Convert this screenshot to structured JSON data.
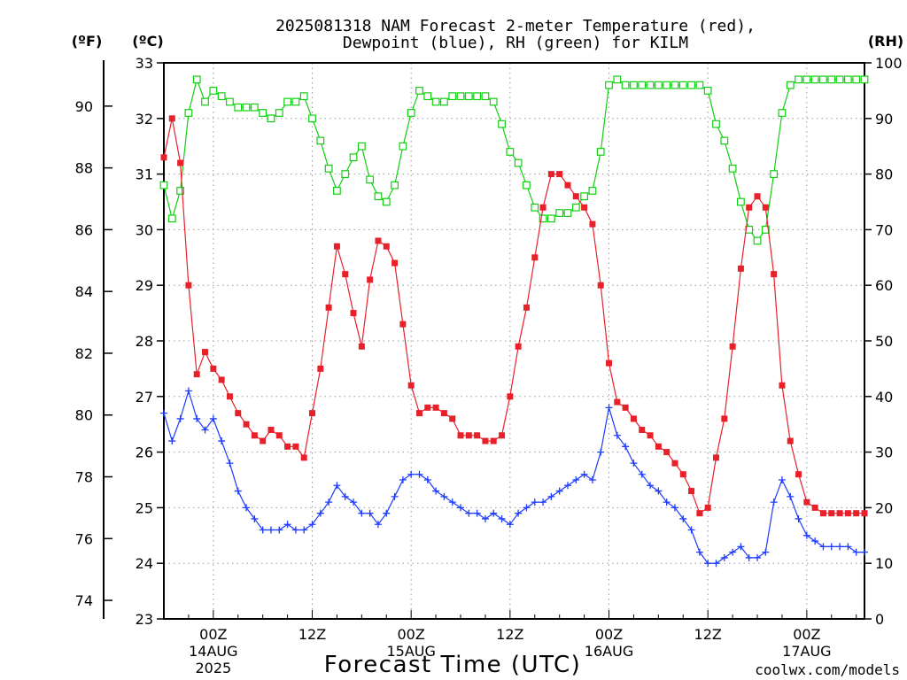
{
  "title_line1": "2025081318 NAM Forecast 2-meter Temperature (red),",
  "title_line2": "Dewpoint (blue), RH (green) for KILM",
  "unit_f": "(ºF)",
  "unit_c": "(ºC)",
  "unit_rh": "(RH)",
  "xlabel": "Forecast Time (UTC)",
  "credit": "coolwx.com/models",
  "colors": {
    "temperature": "#e8202a",
    "dewpoint": "#1e3cff",
    "rh": "#10d010",
    "grid": "#9a9a9a",
    "credit": "#e8202a"
  },
  "chart_data": {
    "type": "line",
    "x_units": "forecast hours from 2025081318 UTC",
    "x": [
      0,
      1,
      2,
      3,
      4,
      5,
      6,
      7,
      8,
      9,
      10,
      11,
      12,
      13,
      14,
      15,
      16,
      17,
      18,
      19,
      20,
      21,
      22,
      23,
      24,
      25,
      26,
      27,
      28,
      29,
      30,
      31,
      32,
      33,
      34,
      35,
      36,
      37,
      38,
      39,
      40,
      41,
      42,
      43,
      44,
      45,
      46,
      47,
      48,
      49,
      50,
      51,
      52,
      53,
      54,
      55,
      56,
      57,
      58,
      59,
      60,
      61,
      62,
      63,
      64,
      65,
      66,
      67,
      68,
      69,
      70,
      71,
      72,
      73,
      74,
      75,
      76,
      77,
      78,
      79,
      80,
      81,
      82,
      83,
      84,
      85
    ],
    "xlim": [
      0,
      85
    ],
    "x_ticks": [
      {
        "x": 6,
        "label": "00Z",
        "sub1": "14AUG",
        "sub2": "2025"
      },
      {
        "x": 18,
        "label": "12Z"
      },
      {
        "x": 30,
        "label": "00Z",
        "sub1": "15AUG"
      },
      {
        "x": 42,
        "label": "12Z"
      },
      {
        "x": 54,
        "label": "00Z",
        "sub1": "16AUG"
      },
      {
        "x": 66,
        "label": "12Z"
      },
      {
        "x": 78,
        "label": "00Z",
        "sub1": "17AUG"
      }
    ],
    "y_left_c": {
      "label": "(ºC)",
      "range": [
        23,
        33
      ],
      "ticks": [
        23,
        24,
        25,
        26,
        27,
        28,
        29,
        30,
        31,
        32,
        33
      ]
    },
    "y_left_f": {
      "label": "(ºF)",
      "ticks": [
        74,
        76,
        78,
        80,
        82,
        84,
        86,
        88,
        90
      ]
    },
    "y_right_rh": {
      "label": "(RH)",
      "range": [
        0,
        100
      ],
      "ticks": [
        0,
        10,
        20,
        30,
        40,
        50,
        60,
        70,
        80,
        90,
        100
      ]
    },
    "grid": true,
    "series": [
      {
        "name": "2-meter Temperature",
        "axis": "celsius",
        "marker": "filled-square",
        "values": [
          31.3,
          32.0,
          31.2,
          29.0,
          27.4,
          27.8,
          27.5,
          27.3,
          27.0,
          26.7,
          26.5,
          26.3,
          26.2,
          26.4,
          26.3,
          26.1,
          26.1,
          25.9,
          26.7,
          27.5,
          28.6,
          29.7,
          29.2,
          28.5,
          27.9,
          29.1,
          29.8,
          29.7,
          29.4,
          28.3,
          27.2,
          26.7,
          26.8,
          26.8,
          26.7,
          26.6,
          26.3,
          26.3,
          26.3,
          26.2,
          26.2,
          26.3,
          27.0,
          27.9,
          28.6,
          29.5,
          30.4,
          31.0,
          31.0,
          30.8,
          30.6,
          30.4,
          30.1,
          29.0,
          27.6,
          26.9,
          26.8,
          26.6,
          26.4,
          26.3,
          26.1,
          26.0,
          25.8,
          25.6,
          25.3,
          24.9,
          25.0,
          25.9,
          26.6,
          27.9,
          29.3,
          30.4,
          30.6,
          30.4,
          29.2,
          27.2,
          26.2,
          25.6,
          25.1,
          25.0,
          24.9,
          24.9,
          24.9,
          24.9,
          24.9,
          24.9
        ]
      },
      {
        "name": "Dewpoint",
        "axis": "celsius",
        "marker": "plus",
        "values": [
          26.7,
          26.2,
          26.6,
          27.1,
          26.6,
          26.4,
          26.6,
          26.2,
          25.8,
          25.3,
          25.0,
          24.8,
          24.6,
          24.6,
          24.6,
          24.7,
          24.6,
          24.6,
          24.7,
          24.9,
          25.1,
          25.4,
          25.2,
          25.1,
          24.9,
          24.9,
          24.7,
          24.9,
          25.2,
          25.5,
          25.6,
          25.6,
          25.5,
          25.3,
          25.2,
          25.1,
          25.0,
          24.9,
          24.9,
          24.8,
          24.9,
          24.8,
          24.7,
          24.9,
          25.0,
          25.1,
          25.1,
          25.2,
          25.3,
          25.4,
          25.5,
          25.6,
          25.5,
          26.0,
          26.8,
          26.3,
          26.1,
          25.8,
          25.6,
          25.4,
          25.3,
          25.1,
          25.0,
          24.8,
          24.6,
          24.2,
          24.0,
          24.0,
          24.1,
          24.2,
          24.3,
          24.1,
          24.1,
          24.2,
          25.1,
          25.5,
          25.2,
          24.8,
          24.5,
          24.4,
          24.3,
          24.3,
          24.3,
          24.3,
          24.2,
          24.2
        ]
      },
      {
        "name": "RH",
        "axis": "rh",
        "marker": "open-square",
        "values": [
          78,
          72,
          77,
          91,
          97,
          93,
          95,
          94,
          93,
          92,
          92,
          92,
          91,
          90,
          91,
          93,
          93,
          94,
          90,
          86,
          81,
          77,
          80,
          83,
          85,
          79,
          76,
          75,
          78,
          85,
          91,
          95,
          94,
          93,
          93,
          94,
          94,
          94,
          94,
          94,
          93,
          89,
          84,
          82,
          78,
          74,
          72,
          72,
          73,
          73,
          74,
          76,
          77,
          84,
          96,
          97,
          96,
          96,
          96,
          96,
          96,
          96,
          96,
          96,
          96,
          96,
          95,
          89,
          86,
          81,
          75,
          70,
          68,
          70,
          80,
          91,
          96,
          97,
          97,
          97,
          97,
          97,
          97,
          97,
          97,
          97
        ]
      }
    ]
  }
}
